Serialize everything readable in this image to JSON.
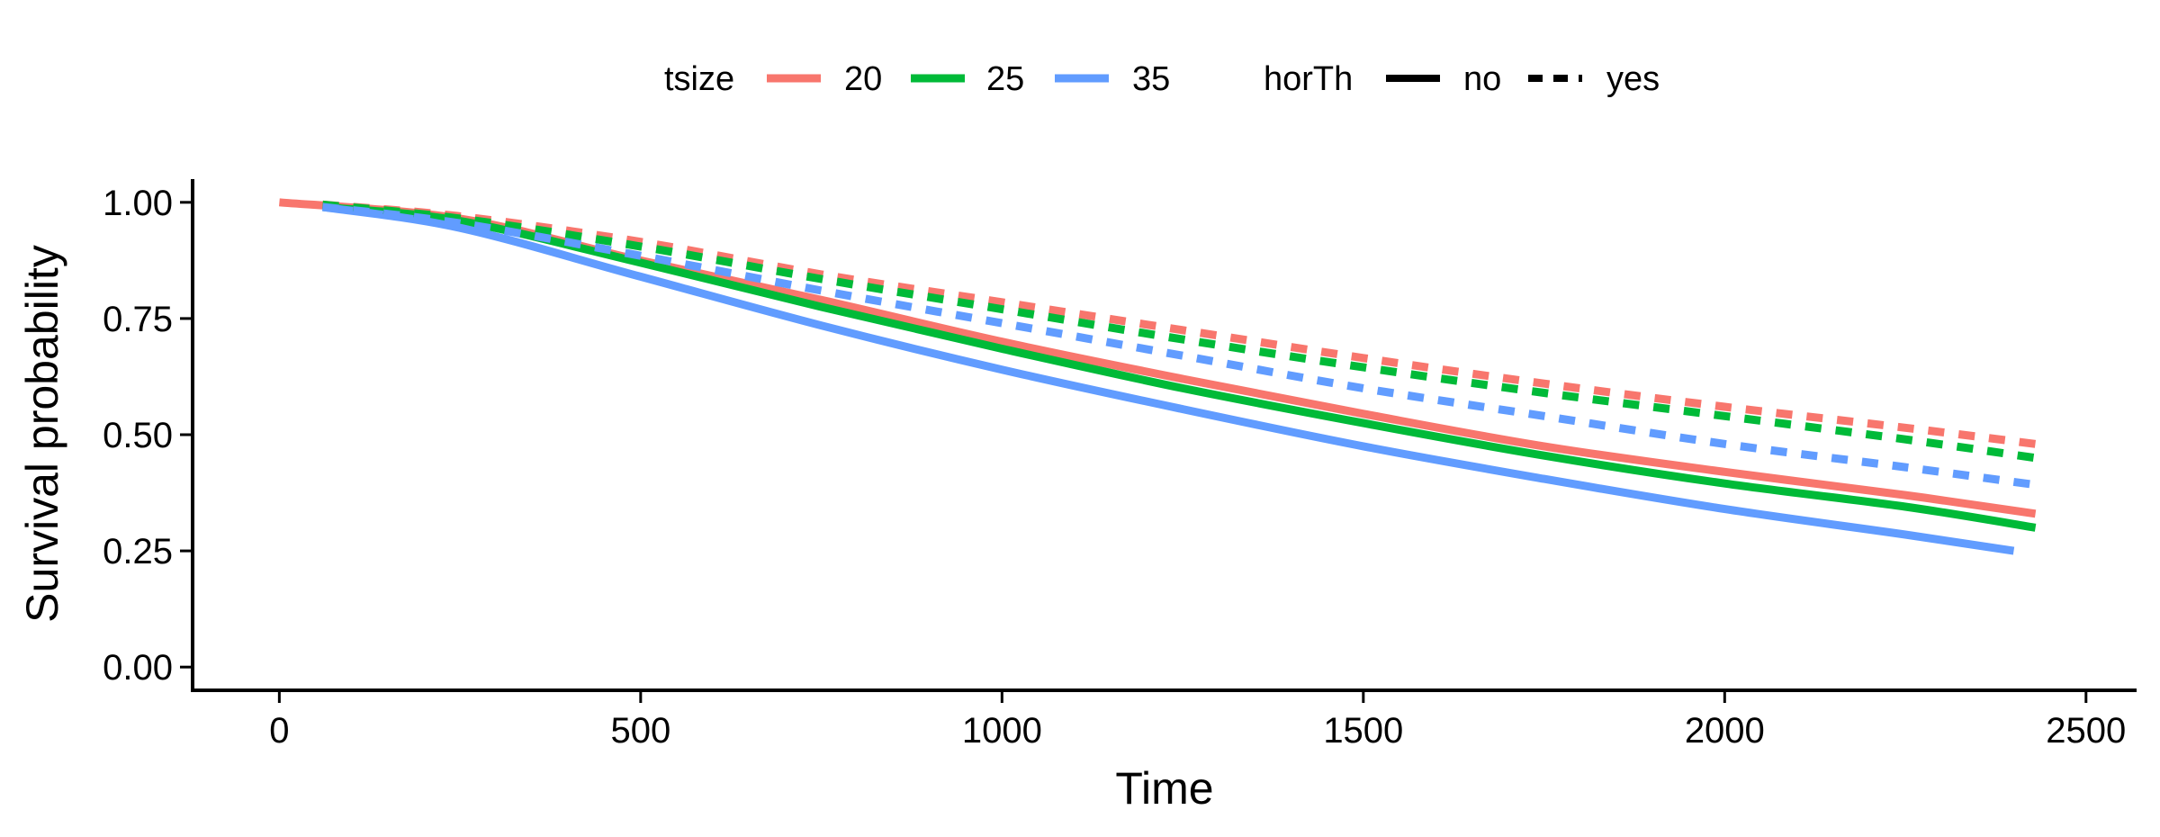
{
  "chart_data": {
    "type": "line",
    "title": "",
    "xlabel": "Time",
    "ylabel": "Survival probability",
    "xlim": [
      -120,
      2570
    ],
    "ylim": [
      -0.05,
      1.05
    ],
    "x_ticks": [
      0,
      500,
      1000,
      1500,
      2000,
      2500
    ],
    "y_ticks": [
      0.0,
      0.25,
      0.5,
      0.75,
      1.0
    ],
    "x_tick_labels": [
      "0",
      "500",
      "1000",
      "1500",
      "2000",
      "2500"
    ],
    "y_tick_labels": [
      "0.00",
      "0.25",
      "0.50",
      "0.75",
      "1.00"
    ],
    "grid": false,
    "legend_position": "top",
    "legend": {
      "groups": [
        {
          "title": "tsize",
          "encoding": "color",
          "entries": [
            {
              "label": "20",
              "color": "#F8766D"
            },
            {
              "label": "25",
              "color": "#00BA38"
            },
            {
              "label": "35",
              "color": "#619CFF"
            }
          ]
        },
        {
          "title": "horTh",
          "encoding": "linetype",
          "entries": [
            {
              "label": "no",
              "linetype": "solid"
            },
            {
              "label": "yes",
              "linetype": "dashed"
            }
          ]
        }
      ]
    },
    "series": [
      {
        "tsize": "20",
        "horTh": "no",
        "color": "#F8766D",
        "linetype": "solid",
        "x": [
          0,
          250,
          500,
          750,
          1000,
          1250,
          1500,
          1750,
          2000,
          2250,
          2430
        ],
        "y": [
          1.0,
          0.965,
          0.875,
          0.79,
          0.7,
          0.62,
          0.545,
          0.475,
          0.42,
          0.37,
          0.33
        ]
      },
      {
        "tsize": "25",
        "horTh": "no",
        "color": "#00BA38",
        "linetype": "solid",
        "x": [
          60,
          250,
          500,
          750,
          1000,
          1250,
          1500,
          1750,
          2000,
          2250,
          2430
        ],
        "y": [
          0.99,
          0.96,
          0.87,
          0.775,
          0.685,
          0.6,
          0.525,
          0.455,
          0.395,
          0.345,
          0.3
        ]
      },
      {
        "tsize": "35",
        "horTh": "no",
        "color": "#619CFF",
        "linetype": "solid",
        "x": [
          60,
          250,
          500,
          750,
          1000,
          1250,
          1500,
          1750,
          2000,
          2250,
          2400
        ],
        "y": [
          0.99,
          0.945,
          0.84,
          0.735,
          0.64,
          0.555,
          0.475,
          0.405,
          0.34,
          0.285,
          0.25
        ]
      },
      {
        "tsize": "20",
        "horTh": "yes",
        "color": "#F8766D",
        "linetype": "dashed",
        "x": [
          60,
          250,
          500,
          750,
          1000,
          1250,
          1500,
          1750,
          2000,
          2250,
          2430
        ],
        "y": [
          0.995,
          0.97,
          0.915,
          0.845,
          0.785,
          0.725,
          0.665,
          0.61,
          0.56,
          0.515,
          0.48
        ]
      },
      {
        "tsize": "25",
        "horTh": "yes",
        "color": "#00BA38",
        "linetype": "dashed",
        "x": [
          60,
          250,
          500,
          750,
          1000,
          1250,
          1500,
          1750,
          2000,
          2250,
          2430
        ],
        "y": [
          0.995,
          0.965,
          0.905,
          0.835,
          0.77,
          0.705,
          0.645,
          0.59,
          0.54,
          0.49,
          0.45
        ]
      },
      {
        "tsize": "35",
        "horTh": "yes",
        "color": "#619CFF",
        "linetype": "dashed",
        "x": [
          60,
          250,
          500,
          750,
          1000,
          1250,
          1500,
          1750,
          2000,
          2250,
          2440
        ],
        "y": [
          0.99,
          0.955,
          0.885,
          0.81,
          0.74,
          0.67,
          0.6,
          0.54,
          0.48,
          0.43,
          0.39
        ]
      }
    ]
  }
}
